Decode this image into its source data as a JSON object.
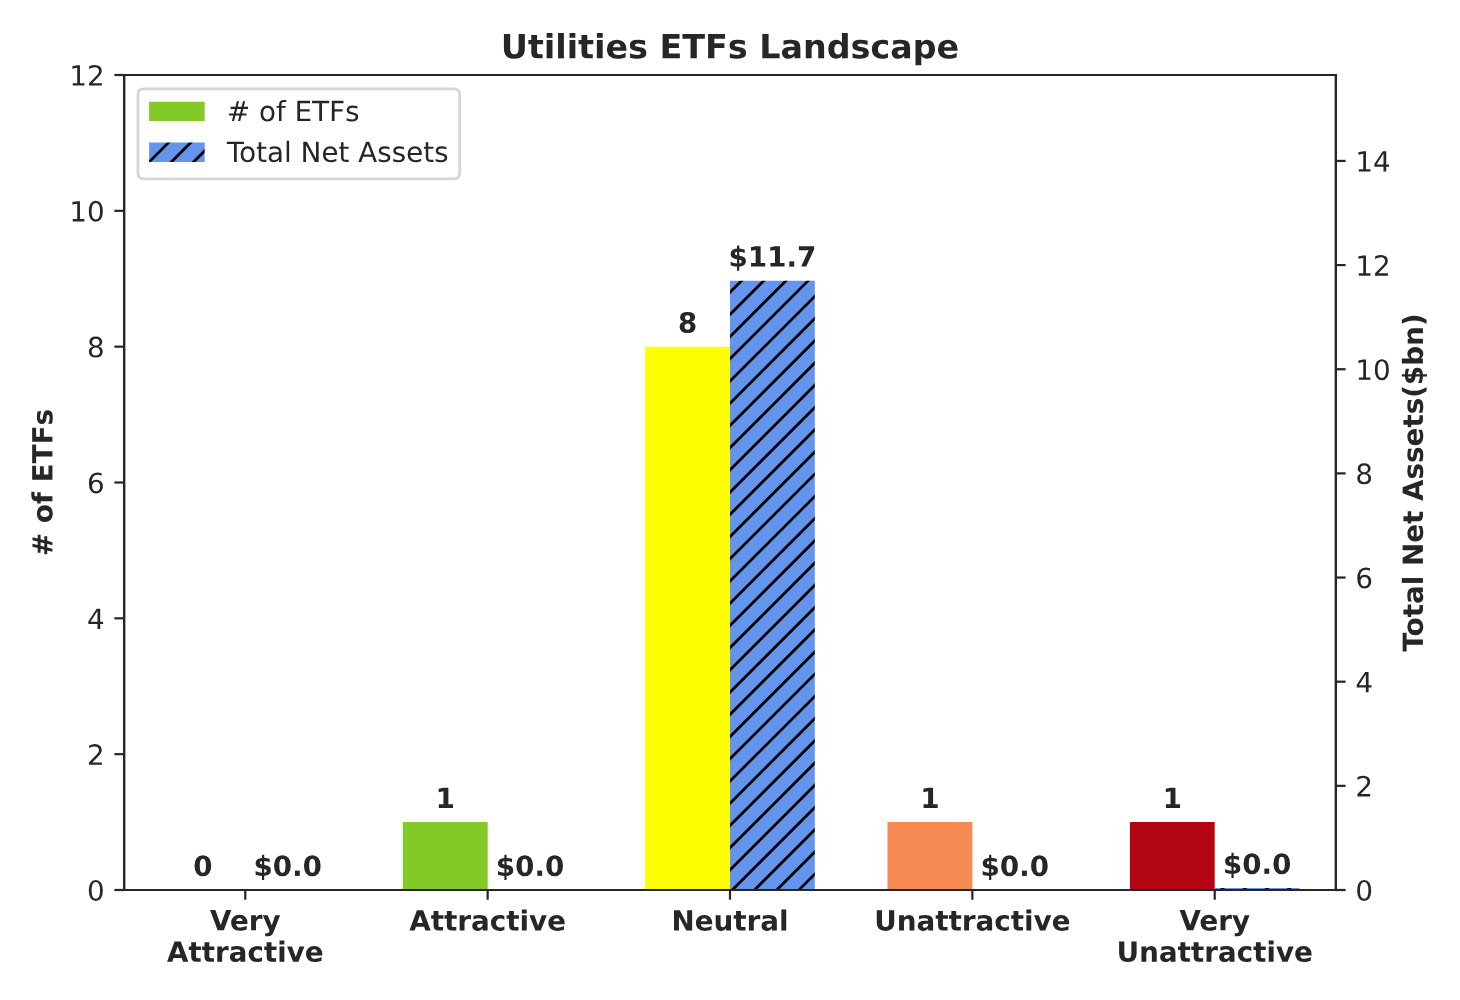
{
  "chart_data": {
    "type": "bar",
    "title": "Utilities ETFs Landscape",
    "ylabel": "# of ETFs",
    "y2label": "Total Net Assets($bn)",
    "categories": [
      "Very\nAttractive",
      "Attractive",
      "Neutral",
      "Unattractive",
      "Very\nUnattractive"
    ],
    "series": [
      {
        "name": "# of ETFs",
        "color": "#83c928",
        "colors": [
          "#83c928",
          "#83c928",
          "#ffff00",
          "#f58a52",
          "#b30512"
        ],
        "values": [
          0,
          1,
          8,
          1,
          1
        ],
        "value_labels": [
          "0",
          "1",
          "8",
          "1",
          "1"
        ]
      },
      {
        "name": "Total Net Assets",
        "color": "#6495ed",
        "axis": "y2",
        "values": [
          0.0,
          0.0,
          11.7,
          0.0,
          0.04
        ],
        "value_labels": [
          "$0.0",
          "$0.0",
          "$11.7",
          "$0.0",
          "$0.0"
        ]
      }
    ],
    "ylim": [
      0,
      12
    ],
    "yticks": [
      0,
      2,
      4,
      6,
      8,
      10,
      12
    ],
    "y2lim": [
      0,
      15.65
    ],
    "y2ticks": [
      0,
      2,
      4,
      6,
      8,
      10,
      12,
      14
    ],
    "legend": "top left",
    "grid": false
  }
}
